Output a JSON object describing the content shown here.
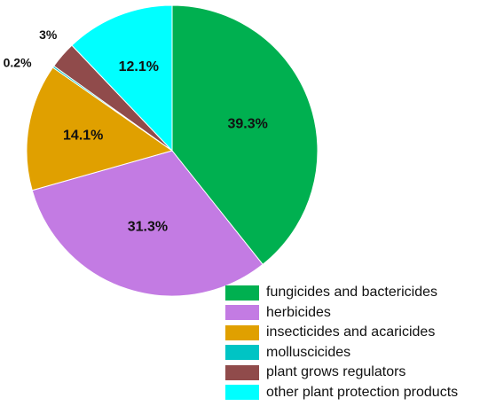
{
  "chart_data": {
    "type": "pie",
    "title": "",
    "slices": [
      {
        "label": "fungicides and bactericides",
        "value": 39.3,
        "display": "39.3%",
        "color": "#00b050"
      },
      {
        "label": "herbicides",
        "value": 31.3,
        "display": "31.3%",
        "color": "#c37be3"
      },
      {
        "label": "insecticides and acaricides",
        "value": 14.1,
        "display": "14.1%",
        "color": "#e0a000"
      },
      {
        "label": "molluscicides",
        "value": 0.2,
        "display": "0.2%",
        "color": "#00c4c4"
      },
      {
        "label": "plant grows regulators",
        "value": 3,
        "display": "3%",
        "color": "#904b4b"
      },
      {
        "label": "other plant protection products",
        "value": 12.1,
        "display": "12.1%",
        "color": "#00ffff"
      }
    ],
    "legend_position": "bottom-right",
    "start_angle": "12 o'clock",
    "direction": "clockwise"
  }
}
